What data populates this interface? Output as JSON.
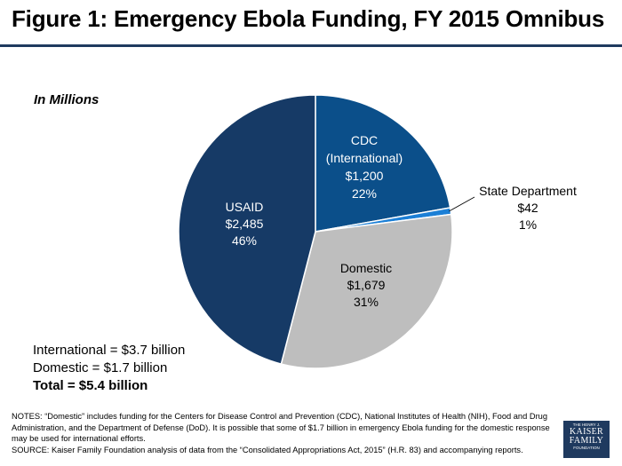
{
  "header": {
    "title": "Figure 1: Emergency Ebola Funding, FY 2015 Omnibus",
    "units_label": "In Millions"
  },
  "chart_data": {
    "type": "pie",
    "title": "Figure 1: Emergency Ebola Funding, FY 2015 Omnibus",
    "units": "In Millions",
    "slices": [
      {
        "key": "cdc",
        "lines": [
          "CDC",
          "(International)"
        ],
        "amount": 1200,
        "value_label": "$1,200",
        "percent_label": "22%",
        "color": "#0b4f8a"
      },
      {
        "key": "state",
        "lines": [
          "State Department"
        ],
        "amount": 42,
        "value_label": "$42",
        "percent_label": "1%",
        "color": "#1b7fd6"
      },
      {
        "key": "domestic",
        "lines": [
          "Domestic"
        ],
        "amount": 1679,
        "value_label": "$1,679",
        "percent_label": "31%",
        "color": "#bebebe"
      },
      {
        "key": "usaid",
        "lines": [
          "USAID"
        ],
        "amount": 2485,
        "value_label": "$2,485",
        "percent_label": "46%",
        "color": "#163a66"
      }
    ]
  },
  "summary": {
    "international": "International = $3.7 billion",
    "domestic": "Domestic = $1.7 billion",
    "total": "Total = $5.4 billion"
  },
  "notes": {
    "notes_text": "NOTES: “Domestic” includes  funding for the Centers for Disease Control and Prevention (CDC), National Institutes of Health (NIH), Food and Drug Administration, and the Department of Defense (DoD). It is possible that some of $1.7 billion in emergency Ebola funding for the domestic response may be used for international efforts.",
    "source_text": "SOURCE: Kaiser Family Foundation analysis of data from the “Consolidated Appropriations Act, 2015” (H.R. 83) and accompanying reports."
  },
  "logo": {
    "line1": "THE HENRY J.",
    "line2": "KAISER",
    "line3": "FAMILY",
    "line4": "FOUNDATION"
  }
}
